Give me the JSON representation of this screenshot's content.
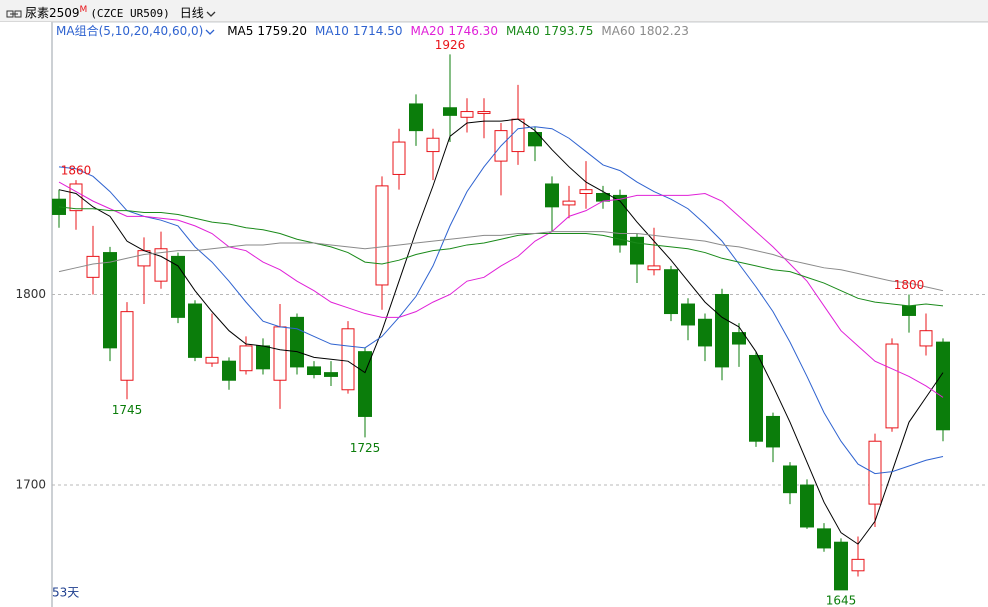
{
  "chart_data": {
    "type": "candlestick",
    "symbol": "尿素2509",
    "badge": "M",
    "code": "(CZCE UR509)",
    "period": "日线",
    "ma_group_label": "MA组合(5,10,20,40,60,0)",
    "days_label": "53天",
    "ylim": [
      1636,
      1943
    ],
    "yticks": [
      1700,
      1800
    ],
    "grid": true,
    "up_color": "#e8141a",
    "down_color": "#0b7d0b",
    "open": [
      1850,
      1844,
      1809,
      1822,
      1755,
      1815,
      1807,
      1820,
      1795,
      1764,
      1765,
      1760,
      1773,
      1755,
      1788,
      1762,
      1759,
      1750,
      1770,
      1805,
      1863,
      1900,
      1875,
      1898,
      1893,
      1895,
      1870,
      1875,
      1885,
      1858,
      1847,
      1853,
      1853,
      1852,
      1830,
      1813,
      1813,
      1795,
      1787,
      1800,
      1780,
      1768,
      1736,
      1710,
      1700,
      1677,
      1670,
      1655,
      1690,
      1730,
      1794,
      1773,
      1775
    ],
    "high": [
      1855,
      1860,
      1836,
      1825,
      1796,
      1830,
      1833,
      1822,
      1797,
      1790,
      1767,
      1778,
      1777,
      1795,
      1790,
      1765,
      1765,
      1786,
      1772,
      1862,
      1887,
      1905,
      1887,
      1926,
      1903,
      1903,
      1890,
      1910,
      1888,
      1862,
      1857,
      1870,
      1857,
      1855,
      1832,
      1835,
      1815,
      1798,
      1790,
      1803,
      1785,
      1770,
      1738,
      1712,
      1703,
      1680,
      1672,
      1673,
      1727,
      1777,
      1800,
      1790,
      1777
    ],
    "low": [
      1835,
      1834,
      1800,
      1765,
      1745,
      1795,
      1803,
      1785,
      1765,
      1762,
      1750,
      1758,
      1758,
      1740,
      1758,
      1756,
      1752,
      1748,
      1725,
      1792,
      1855,
      1878,
      1860,
      1880,
      1885,
      1882,
      1852,
      1868,
      1870,
      1833,
      1840,
      1845,
      1845,
      1822,
      1806,
      1810,
      1786,
      1776,
      1765,
      1755,
      1762,
      1720,
      1712,
      1690,
      1677,
      1665,
      1645,
      1652,
      1678,
      1728,
      1780,
      1768,
      1723
    ],
    "close": [
      1842,
      1858,
      1820,
      1772,
      1791,
      1823,
      1824,
      1788,
      1767,
      1767,
      1755,
      1773,
      1761,
      1783,
      1762,
      1758,
      1757,
      1782,
      1736,
      1857,
      1880,
      1886,
      1882,
      1894,
      1896,
      1896,
      1886,
      1892,
      1878,
      1846,
      1849,
      1855,
      1849,
      1826,
      1816,
      1815,
      1790,
      1784,
      1773,
      1762,
      1774,
      1723,
      1720,
      1696,
      1678,
      1667,
      1645,
      1661,
      1723,
      1774,
      1789,
      1781,
      1729
    ],
    "annotations": [
      1860,
      1745,
      1926,
      1725,
      1800,
      1645
    ],
    "series": [
      {
        "name": "MA5",
        "color": "#000000",
        "latest": {
          "value": 1759.2,
          "label": "1759.20"
        },
        "values": [
          1855,
          1853,
          1846,
          1841,
          1828,
          1823,
          1820,
          1815,
          1802,
          1791,
          1781,
          1774,
          1773,
          1771,
          1770,
          1767,
          1766,
          1765,
          1759,
          1781,
          1807,
          1833,
          1857,
          1883,
          1890,
          1891,
          1891,
          1892,
          1886,
          1876,
          1867,
          1859,
          1854,
          1849,
          1838,
          1828,
          1818,
          1807,
          1796,
          1788,
          1783,
          1770,
          1752,
          1733,
          1712,
          1691,
          1675,
          1669,
          1681,
          1707,
          1733,
          1746,
          1759
        ]
      },
      {
        "name": "MA10",
        "color": "#2f63d0",
        "latest": {
          "value": 1714.5,
          "label": "1714.50"
        },
        "values": [
          1867,
          1866,
          1862,
          1854,
          1844,
          1841,
          1839,
          1836,
          1825,
          1817,
          1807,
          1796,
          1786,
          1783,
          1782,
          1778,
          1774,
          1773,
          1772,
          1778,
          1788,
          1799,
          1815,
          1836,
          1854,
          1867,
          1878,
          1887,
          1888,
          1887,
          1882,
          1875,
          1868,
          1865,
          1859,
          1854,
          1850,
          1845,
          1837,
          1828,
          1816,
          1804,
          1791,
          1775,
          1757,
          1738,
          1723,
          1711,
          1706,
          1707,
          1710,
          1713,
          1715
        ]
      },
      {
        "name": "MA20",
        "color": "#e020d8",
        "latest": {
          "value": 1746.3,
          "label": "1746.30"
        },
        "values": [
          1859,
          1854,
          1849,
          1845,
          1841,
          1841,
          1840,
          1839,
          1836,
          1832,
          1825,
          1823,
          1817,
          1813,
          1807,
          1802,
          1796,
          1793,
          1790,
          1788,
          1788,
          1791,
          1796,
          1800,
          1807,
          1809,
          1815,
          1820,
          1828,
          1833,
          1841,
          1844,
          1849,
          1850,
          1852,
          1852,
          1852,
          1852,
          1853,
          1849,
          1841,
          1833,
          1825,
          1816,
          1807,
          1794,
          1781,
          1773,
          1765,
          1761,
          1757,
          1752,
          1746
        ]
      },
      {
        "name": "MA40",
        "color": "#1a8a1a",
        "latest": 1793.75,
        "values": [
          1846,
          1845,
          1845,
          1844,
          1844,
          1843,
          1843,
          1842,
          1840,
          1838,
          1837,
          1835,
          1834,
          1832,
          1829,
          1827,
          1825,
          1822,
          1817,
          1816,
          1818,
          1821,
          1823,
          1824,
          1826,
          1827,
          1829,
          1831,
          1832,
          1832,
          1832,
          1832,
          1831,
          1829,
          1827,
          1826,
          1825,
          1824,
          1822,
          1819,
          1817,
          1815,
          1813,
          1812,
          1809,
          1806,
          1802,
          1798,
          1796,
          1795,
          1794,
          1795,
          1794
        ]
      },
      {
        "name": "MA60",
        "color": "#8a8a8a",
        "latest": 1802.23,
        "values": [
          1812,
          1814,
          1816,
          1817,
          1819,
          1821,
          1822,
          1823,
          1823,
          1824,
          1825,
          1826,
          1826,
          1827,
          1827,
          1827,
          1826,
          1825,
          1824,
          1825,
          1826,
          1827,
          1828,
          1829,
          1830,
          1831,
          1831,
          1832,
          1832,
          1833,
          1833,
          1833,
          1833,
          1832,
          1832,
          1831,
          1830,
          1829,
          1828,
          1826,
          1825,
          1823,
          1821,
          1818,
          1816,
          1814,
          1813,
          1811,
          1809,
          1807,
          1806,
          1804,
          1802
        ]
      }
    ]
  }
}
